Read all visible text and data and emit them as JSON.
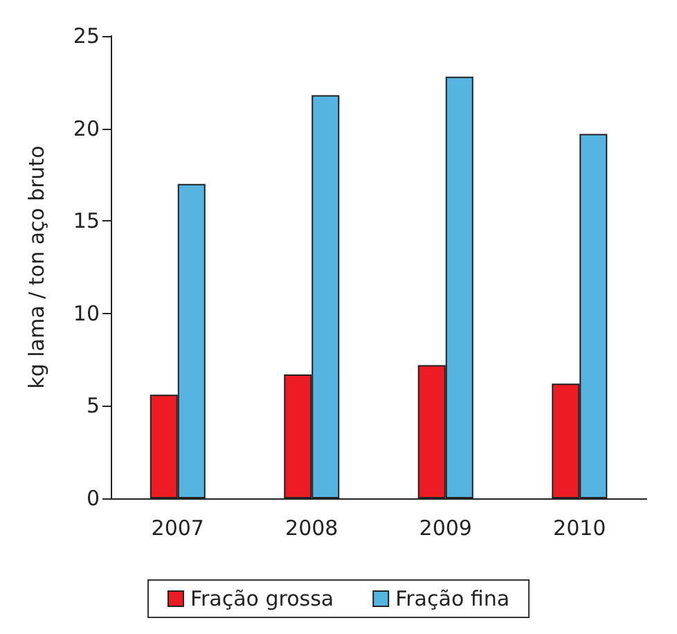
{
  "chart_data": {
    "type": "bar",
    "ylabel": "kg lama / ton aço bruto",
    "categories": [
      "2007",
      "2008",
      "2009",
      "2010"
    ],
    "series": [
      {
        "name": "Fração grossa",
        "color": "#ed1c24",
        "values": [
          5.6,
          6.7,
          7.2,
          6.2
        ]
      },
      {
        "name": "Fração fina",
        "color": "#55b5e0",
        "values": [
          17.0,
          21.8,
          22.8,
          19.7
        ]
      }
    ],
    "ylim": [
      0,
      25
    ],
    "yticks": [
      0,
      5,
      10,
      15,
      20,
      25
    ],
    "grid": false,
    "legend": "bottom"
  }
}
